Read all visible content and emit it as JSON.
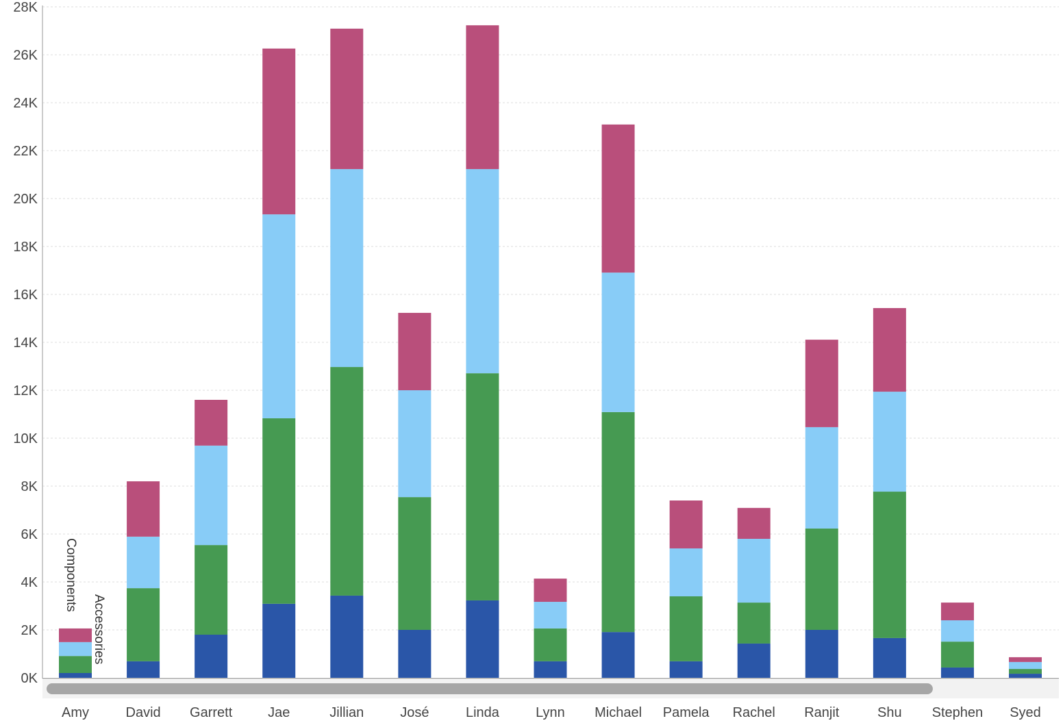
{
  "chart_data": {
    "type": "bar",
    "stacked": true,
    "categories": [
      "Amy",
      "David",
      "Garrett",
      "Jae",
      "Jillian",
      "José",
      "Linda",
      "Lynn",
      "Michael",
      "Pamela",
      "Rachel",
      "Ranjit",
      "Shu",
      "Stephen",
      "Syed"
    ],
    "series": [
      {
        "color": "#2a56a8",
        "values": [
          200,
          690,
          1800,
          3090,
          3430,
          2000,
          3230,
          690,
          1910,
          690,
          1430,
          2000,
          1660,
          430,
          170
        ]
      },
      {
        "color": "#469a52",
        "values": [
          710,
          3050,
          3740,
          7740,
          9540,
          5540,
          9480,
          1370,
          9180,
          2710,
          1710,
          4230,
          6110,
          1080,
          200
        ]
      },
      {
        "color": "#88ccf7",
        "values": [
          580,
          2150,
          4150,
          8510,
          8260,
          4460,
          8520,
          1110,
          5820,
          2000,
          2660,
          4230,
          4170,
          890,
          290
        ]
      },
      {
        "color": "#b94f7b",
        "values": [
          570,
          2310,
          1910,
          6920,
          5860,
          3230,
          6000,
          970,
          6180,
          2000,
          1290,
          3650,
          3490,
          740,
          200
        ]
      }
    ],
    "annotations": [
      "Components",
      "Accessories"
    ],
    "y_ticks": [
      "0K",
      "2K",
      "4K",
      "6K",
      "8K",
      "10K",
      "12K",
      "14K",
      "16K",
      "18K",
      "20K",
      "22K",
      "24K",
      "26K",
      "28K"
    ],
    "ylim": [
      0,
      28000
    ],
    "grid": true,
    "title": "",
    "xlabel": "",
    "ylabel": ""
  },
  "scrollbar": {
    "position_fraction": 0.0,
    "visible_fraction": 0.88
  }
}
